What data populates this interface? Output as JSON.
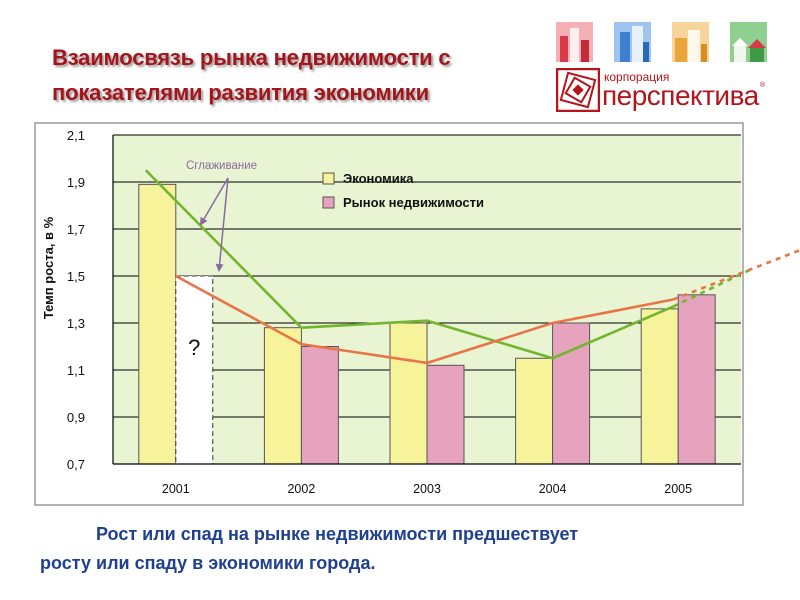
{
  "slide": {
    "title_line1": "Взаимосвязь рынка недвижимости с",
    "title_line2": "показателями развития экономики",
    "caption_line1": "Рост или спад на рынке недвижимости предшествует",
    "caption_line2": "росту или спаду в экономики города."
  },
  "logo": {
    "small_text": "корпорация",
    "big_text": "перспектива",
    "registered": "®",
    "tile_colors": [
      "#d93a47",
      "#3d7fd1",
      "#e9a53a",
      "#3f9a46"
    ],
    "brand_color": "#b2151b"
  },
  "chart_data": {
    "type": "bar",
    "ylabel": "Темп роста, в %",
    "ylim": [
      0.7,
      2.1
    ],
    "yticks": [
      0.7,
      0.9,
      1.1,
      1.3,
      1.5,
      1.7,
      1.9,
      2.1
    ],
    "ytick_labels": [
      "0,7",
      "0,9",
      "1,1",
      "1,3",
      "1,5",
      "1,7",
      "1,9",
      "2,1"
    ],
    "categories": [
      "2001",
      "2002",
      "2003",
      "2004",
      "2005"
    ],
    "grid": true,
    "legend_position": "top-center",
    "series": [
      {
        "name": "Экономика",
        "color": "#f7f39b",
        "values": [
          1.89,
          1.28,
          1.3,
          1.15,
          1.36
        ]
      },
      {
        "name": "Рынок недвижимости",
        "color": "#e6a3bd",
        "values": [
          1.5,
          1.2,
          1.12,
          1.3,
          1.42
        ],
        "unknown_index": 0,
        "unknown_label": "?"
      }
    ],
    "lines": [
      {
        "color": "#73b52e",
        "values": [
          1.95,
          1.28,
          1.31,
          1.15,
          1.37
        ],
        "extrapolate_to": 1.53
      },
      {
        "color": "#e87549",
        "values": [
          1.5,
          1.21,
          1.13,
          1.3,
          1.4
        ],
        "extrapolate_to": 1.61
      }
    ],
    "annotation": {
      "text": "Сглаживание",
      "color": "#8a6aa2"
    },
    "colors": {
      "plot_bg": "#e9f4d2",
      "frame": "#9a9a9a"
    }
  }
}
